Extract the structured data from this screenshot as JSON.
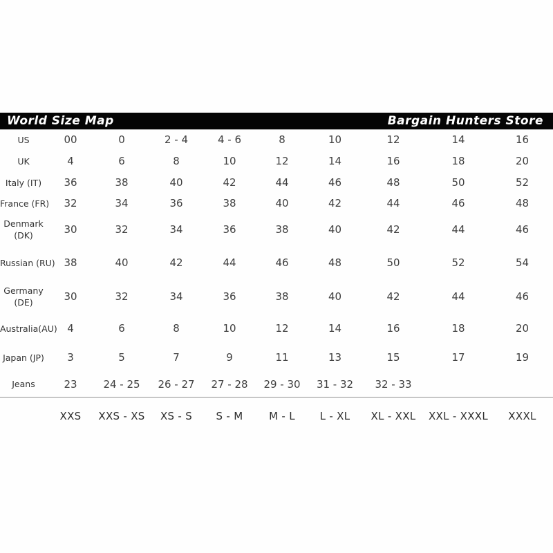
{
  "header": {
    "left_title": "World Size Map",
    "right_title": "Bargain Hunters Store"
  },
  "colors": {
    "header_bar": "#050505",
    "header_text": "#ffffff",
    "divider": "#c6c6c6",
    "body_text": "#3f3f3f"
  },
  "table": {
    "rows": [
      {
        "label": "US",
        "values": [
          "00",
          "0",
          "2 - 4",
          "4 - 6",
          "8",
          "10",
          "12",
          "14",
          "16"
        ]
      },
      {
        "label": "UK",
        "values": [
          "4",
          "6",
          "8",
          "10",
          "12",
          "14",
          "16",
          "18",
          "20"
        ]
      },
      {
        "label": "Italy (IT)",
        "values": [
          "36",
          "38",
          "40",
          "42",
          "44",
          "46",
          "48",
          "50",
          "52"
        ]
      },
      {
        "label": "France (FR)",
        "values": [
          "32",
          "34",
          "36",
          "38",
          "40",
          "42",
          "44",
          "46",
          "48"
        ]
      },
      {
        "label": "Denmark",
        "label2": "(DK)",
        "values": [
          "30",
          "32",
          "34",
          "36",
          "38",
          "40",
          "42",
          "44",
          "46"
        ]
      },
      {
        "label": "Russian (RU)",
        "values": [
          "38",
          "40",
          "42",
          "44",
          "46",
          "48",
          "50",
          "52",
          "54"
        ]
      },
      {
        "label": "Germany",
        "label2": "(DE)",
        "values": [
          "30",
          "32",
          "34",
          "36",
          "38",
          "40",
          "42",
          "44",
          "46"
        ]
      },
      {
        "label": "Australia(AU)",
        "values": [
          "4",
          "6",
          "8",
          "10",
          "12",
          "14",
          "16",
          "18",
          "20"
        ]
      },
      {
        "label": "Japan (JP)",
        "values": [
          "3",
          "5",
          "7",
          "9",
          "11",
          "13",
          "15",
          "17",
          "19"
        ]
      },
      {
        "label": "Jeans",
        "values": [
          "23",
          "24 - 25",
          "26 - 27",
          "27 - 28",
          "29 - 30",
          "31 - 32",
          "32 - 33",
          "",
          ""
        ]
      }
    ],
    "footer_labels": [
      "XXS",
      "XXS - XS",
      "XS - S",
      "S - M",
      "M - L",
      "L - XL",
      "XL - XXL",
      "XXL - XXXL",
      "XXXL"
    ]
  },
  "chart_data": {
    "type": "table",
    "title": "World Size Map",
    "store": "Bargain Hunters Store",
    "row_headers": [
      "US",
      "UK",
      "Italy (IT)",
      "France (FR)",
      "Denmark (DK)",
      "Russian (RU)",
      "Germany (DE)",
      "Australia(AU)",
      "Japan (JP)",
      "Jeans"
    ],
    "column_footer": [
      "XXS",
      "XXS - XS",
      "XS - S",
      "S - M",
      "M - L",
      "L - XL",
      "XL - XXL",
      "XXL - XXXL",
      "XXXL"
    ],
    "rows": [
      [
        "00",
        "0",
        "2 - 4",
        "4 - 6",
        "8",
        "10",
        "12",
        "14",
        "16"
      ],
      [
        "4",
        "6",
        "8",
        "10",
        "12",
        "14",
        "16",
        "18",
        "20"
      ],
      [
        "36",
        "38",
        "40",
        "42",
        "44",
        "46",
        "48",
        "50",
        "52"
      ],
      [
        "32",
        "34",
        "36",
        "38",
        "40",
        "42",
        "44",
        "46",
        "48"
      ],
      [
        "30",
        "32",
        "34",
        "36",
        "38",
        "40",
        "42",
        "44",
        "46"
      ],
      [
        "38",
        "40",
        "42",
        "44",
        "46",
        "48",
        "50",
        "52",
        "54"
      ],
      [
        "30",
        "32",
        "34",
        "36",
        "38",
        "40",
        "42",
        "44",
        "46"
      ],
      [
        "4",
        "6",
        "8",
        "10",
        "12",
        "14",
        "16",
        "18",
        "20"
      ],
      [
        "3",
        "5",
        "7",
        "9",
        "11",
        "13",
        "15",
        "17",
        "19"
      ],
      [
        "23",
        "24 - 25",
        "26 - 27",
        "27 - 28",
        "29 - 30",
        "31 - 32",
        "32 - 33",
        "",
        ""
      ]
    ]
  }
}
